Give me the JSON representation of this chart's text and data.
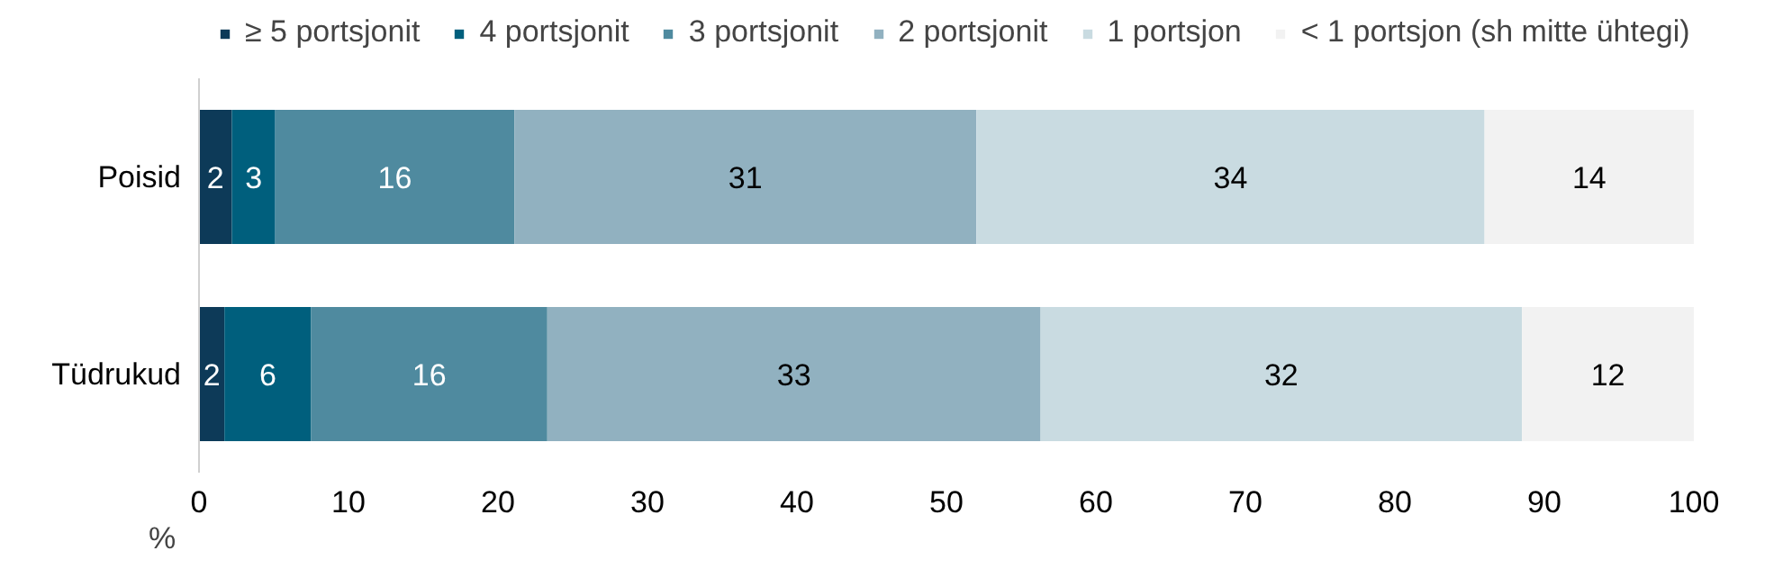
{
  "chart_data": {
    "type": "bar",
    "orientation": "horizontal",
    "stacked": true,
    "categories": [
      "Poisid",
      "Tüdrukud"
    ],
    "series": [
      {
        "name": "≥ 5 portsjonit",
        "color": "#0d3a58",
        "values": [
          2.2,
          1.7
        ],
        "value_labels": [
          "2",
          "2"
        ]
      },
      {
        "name": "4 portsjonit",
        "color": "#005f7d",
        "values": [
          2.9,
          5.8
        ],
        "value_labels": [
          "3",
          "6"
        ]
      },
      {
        "name": "3 portsjonit",
        "color": "#4f8a9f",
        "values": [
          16.0,
          15.8
        ],
        "value_labels": [
          "16",
          "16"
        ]
      },
      {
        "name": "2 portsjonit",
        "color": "#91b1c0",
        "values": [
          30.9,
          33.0
        ],
        "value_labels": [
          "31",
          "33"
        ]
      },
      {
        "name": "1 portsjon",
        "color": "#c9dbe1",
        "values": [
          34.0,
          32.2
        ],
        "value_labels": [
          "34",
          "32"
        ]
      },
      {
        "name": "< 1 portsjon (sh mitte ühtegi)",
        "color": "#f2f2f2",
        "values": [
          14.0,
          11.5
        ],
        "value_labels": [
          "14",
          "12"
        ]
      }
    ],
    "xlabel": "%",
    "xlim": [
      0,
      100
    ],
    "xticks": [
      0,
      10,
      20,
      30,
      40,
      50,
      60,
      70,
      80,
      90,
      100
    ],
    "grid": false,
    "legend": "top"
  }
}
